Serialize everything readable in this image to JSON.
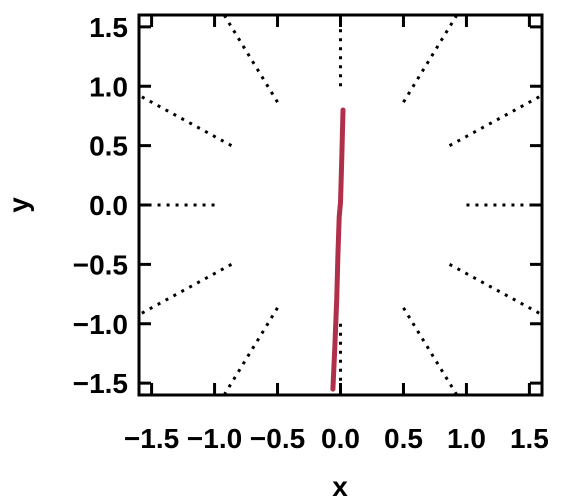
{
  "chart_data": {
    "type": "line",
    "title": "",
    "xlabel": "x",
    "ylabel": "y",
    "xlim": [
      -1.6,
      1.6
    ],
    "ylim": [
      -1.6,
      1.6
    ],
    "x_ticks": [
      "-1.5",
      "-1.0",
      "-0.5",
      "0.0",
      "0.5",
      "1.0",
      "1.5"
    ],
    "y_ticks": [
      "-1.5",
      "-1.0",
      "-0.5",
      "0.0",
      "0.5",
      "1.0",
      "1.5"
    ],
    "grid": false,
    "colors": {
      "track": "#b0304a",
      "guides": "#000000"
    },
    "guide_rays": {
      "style": "dotted",
      "angles_deg": [
        0,
        30,
        60,
        90,
        120,
        150,
        180,
        210,
        240,
        270,
        300,
        330
      ],
      "inner_radius": 1.0,
      "outer_radius": 2.3
    },
    "series": [
      {
        "x": [
          -0.06,
          -0.045,
          -0.03,
          -0.02,
          -0.01,
          0.0,
          0.01,
          0.02
        ],
        "y": [
          -1.55,
          -1.2,
          -0.8,
          -0.4,
          -0.1,
          0.02,
          0.4,
          0.8
        ]
      }
    ]
  }
}
